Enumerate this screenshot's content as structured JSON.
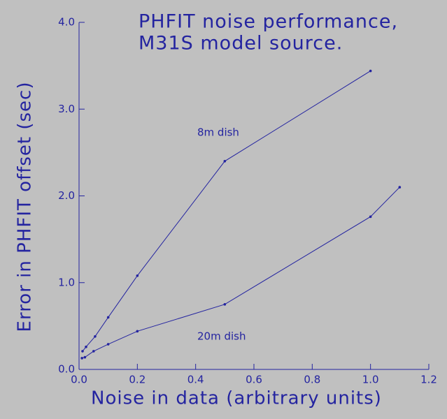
{
  "chart_data": {
    "type": "line",
    "title": [
      "PHFIT noise performance,",
      "M31S model source."
    ],
    "x_label": "Noise in data (arbitrary units)",
    "y_label": "Error in PHFIT offset (sec)",
    "color": "#2424a0",
    "series": [
      {
        "x": [
          0.012,
          0.024,
          0.055,
          0.1,
          0.2,
          0.5,
          1.0
        ],
        "values": [
          0.21,
          0.26,
          0.38,
          0.6,
          1.08,
          2.4,
          3.44
        ]
      },
      {
        "x": [
          0.01,
          0.02,
          0.05,
          0.1,
          0.2,
          0.5,
          1.0,
          1.1
        ],
        "values": [
          0.13,
          0.14,
          0.21,
          0.29,
          0.44,
          0.75,
          1.76,
          2.1
        ]
      }
    ],
    "annotations": [
      "8m dish",
      "20m dish"
    ],
    "xlim": [
      0,
      1.2
    ],
    "ylim": [
      0,
      4
    ],
    "xticks": [
      {
        "value": 0,
        "label": "0.0"
      },
      0.2,
      0.4,
      0.6,
      0.8,
      {
        "value": 1,
        "label": "1.0"
      },
      1.2
    ],
    "yticks": [
      {
        "value": 0,
        "label": "0.0"
      },
      {
        "value": 1,
        "label": "1.0"
      },
      {
        "value": 2,
        "label": "2.0"
      },
      {
        "value": 3,
        "label": "3.0"
      },
      {
        "value": 4,
        "label": "4.0"
      }
    ]
  }
}
